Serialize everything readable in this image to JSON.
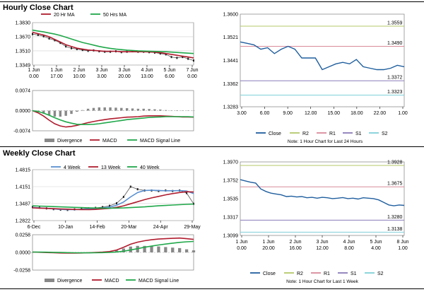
{
  "sections": {
    "hourly_title": "Hourly Close Chart",
    "weekly_title": "Weekly Close Chart"
  },
  "colors": {
    "ma_short": "#b01c2e",
    "ma_long": "#20a84a",
    "close_line": "#1f5e9e",
    "r2": "#b5c86a",
    "r1": "#d88a9a",
    "s1": "#8a7bb8",
    "s2": "#7fd0d8",
    "macd": "#b01c2e",
    "signal": "#20a84a",
    "ma_4w": "#5a8fd0",
    "divergence": "#888888"
  },
  "chart_data": [
    {
      "id": "hourly-price",
      "type": "line",
      "ylim": [
        1.3349,
        1.383
      ],
      "yticks": [
        "1.3830",
        "1.3670",
        "1.3510",
        "1.3349"
      ],
      "xticks": [
        "1 Jun\n0.00",
        "1 Jun\n17.00",
        "2 Jun\n10.00",
        "3 Jun\n3.00",
        "3 Jun\n20.00",
        "4 Jun\n13.00",
        "5 Jun\n6.00",
        "7 Jun\n0.00"
      ],
      "legend": [
        "20 Hr MA",
        "50 Hrs MA"
      ],
      "series": [
        {
          "name": "Close",
          "values": [
            1.37,
            1.369,
            1.3675,
            1.365,
            1.363,
            1.36,
            1.356,
            1.354,
            1.353,
            1.352,
            1.351,
            1.3515,
            1.3505,
            1.35,
            1.35,
            1.3505,
            1.3495,
            1.35,
            1.3505,
            1.35,
            1.35,
            1.3495,
            1.349,
            1.348,
            1.347,
            1.344,
            1.343,
            1.344,
            1.342,
            1.34
          ]
        },
        {
          "name": "20 Hr MA",
          "values": [
            1.372,
            1.3705,
            1.369,
            1.367,
            1.364,
            1.361,
            1.358,
            1.356,
            1.354,
            1.353,
            1.352,
            1.3515,
            1.351,
            1.3505,
            1.3505,
            1.3505,
            1.35,
            1.35,
            1.35,
            1.35,
            1.35,
            1.3498,
            1.3495,
            1.349,
            1.348,
            1.347,
            1.346,
            1.345,
            1.344,
            1.343
          ]
        },
        {
          "name": "50 Hrs MA",
          "values": [
            1.3745,
            1.3735,
            1.3725,
            1.3712,
            1.37,
            1.3685,
            1.3665,
            1.3645,
            1.3625,
            1.3605,
            1.359,
            1.3575,
            1.356,
            1.3548,
            1.3538,
            1.353,
            1.3524,
            1.3518,
            1.3514,
            1.351,
            1.3508,
            1.3506,
            1.3504,
            1.3502,
            1.35,
            1.3496,
            1.3492,
            1.3488,
            1.3484,
            1.348
          ]
        }
      ]
    },
    {
      "id": "hourly-macd",
      "type": "line",
      "ylim": [
        -0.0074,
        0.0074
      ],
      "yticks": [
        "0.0074",
        "0.0000",
        "-0.0074"
      ],
      "legend": [
        "Divergence",
        "MACD",
        "MACD Signal Line"
      ],
      "series": [
        {
          "name": "MACD",
          "values": [
            0.0,
            -0.0008,
            -0.002,
            -0.0035,
            -0.0048,
            -0.0056,
            -0.006,
            -0.0058,
            -0.0054,
            -0.0049,
            -0.0044,
            -0.004,
            -0.0036,
            -0.0033,
            -0.003,
            -0.0028,
            -0.0026,
            -0.0024,
            -0.0023,
            -0.0022,
            -0.002,
            -0.0019,
            -0.0019,
            -0.0019,
            -0.002,
            -0.0021,
            -0.0022,
            -0.0023,
            -0.0023,
            -0.0024
          ]
        },
        {
          "name": "MACD Signal Line",
          "values": [
            0.0,
            -0.0003,
            -0.0009,
            -0.0017,
            -0.0026,
            -0.0034,
            -0.0041,
            -0.0046,
            -0.005,
            -0.0051,
            -0.0051,
            -0.005,
            -0.0048,
            -0.0045,
            -0.0042,
            -0.0039,
            -0.0036,
            -0.0033,
            -0.0031,
            -0.0029,
            -0.0027,
            -0.0025,
            -0.0024,
            -0.0023,
            -0.0022,
            -0.0022,
            -0.0022,
            -0.0022,
            -0.0022,
            -0.0023
          ]
        },
        {
          "name": "Divergence",
          "values": [
            0.0,
            -0.0005,
            -0.0011,
            -0.0018,
            -0.0022,
            -0.0022,
            -0.0019,
            -0.0012,
            -0.0004,
            0.0002,
            0.0007,
            0.001,
            0.0012,
            0.0012,
            0.0012,
            0.0011,
            0.001,
            0.0009,
            0.0008,
            0.0007,
            0.0007,
            0.0006,
            0.0005,
            0.0004,
            0.0002,
            0.0001,
            0.0,
            -0.0001,
            -0.0001,
            -0.0001
          ]
        }
      ]
    },
    {
      "id": "hourly-pivot",
      "type": "line",
      "ylim": [
        1.3283,
        1.36
      ],
      "yticks": [
        "1.3600",
        "1.3521",
        "1.3441",
        "1.3362",
        "1.3283"
      ],
      "xticks": [
        "3.00",
        "6.00",
        "9.00",
        "12.00",
        "15.00",
        "18.00",
        "22.00",
        "1.00"
      ],
      "x": [
        0,
        1,
        2,
        3,
        4,
        5,
        6,
        7,
        8,
        9,
        10,
        11,
        12,
        13,
        14,
        15,
        16,
        17,
        18,
        19,
        20,
        21,
        22,
        23,
        24
      ],
      "series": [
        {
          "name": "Close",
          "values": [
            1.3505,
            1.35,
            1.3495,
            1.348,
            1.3485,
            1.3465,
            1.348,
            1.349,
            1.348,
            1.345,
            1.345,
            1.345,
            1.341,
            1.342,
            1.343,
            1.3435,
            1.343,
            1.3445,
            1.342,
            1.3415,
            1.341,
            1.341,
            1.3415,
            1.3425,
            1.342
          ]
        }
      ],
      "levels": [
        {
          "name": "R2",
          "value": 1.3559,
          "label": "1.3559"
        },
        {
          "name": "R1",
          "value": 1.349,
          "label": "1.3490"
        },
        {
          "name": "S1",
          "value": 1.3372,
          "label": "1.3372"
        },
        {
          "name": "S2",
          "value": 1.3323,
          "label": "1.3323"
        }
      ],
      "legend": [
        "Close",
        "R2",
        "R1",
        "S1",
        "S2"
      ],
      "note": "Note: 1 Hour Chart for Last 24 Hours"
    },
    {
      "id": "weekly-price",
      "type": "line",
      "ylim": [
        1.2822,
        1.4815
      ],
      "yticks": [
        "1.4815",
        "1.4151",
        "1.3487",
        "1.2822"
      ],
      "xticks": [
        "6-Dec",
        "10-Jan",
        "14-Feb",
        "20-Mar",
        "24-Apr",
        "29-May"
      ],
      "legend": [
        "4 Week",
        "13 Week",
        "40 Week"
      ],
      "series": [
        {
          "name": "Close",
          "values": [
            1.335,
            1.333,
            1.33,
            1.327,
            1.325,
            1.324,
            1.326,
            1.328,
            1.33,
            1.332,
            1.335,
            1.34,
            1.35,
            1.375,
            1.415,
            1.405,
            1.4,
            1.4,
            1.398,
            1.4,
            1.398,
            1.4,
            1.39,
            1.348
          ]
        },
        {
          "name": "4 Week",
          "values": [
            1.333,
            1.332,
            1.33,
            1.328,
            1.326,
            1.325,
            1.325,
            1.326,
            1.328,
            1.33,
            1.332,
            1.335,
            1.342,
            1.355,
            1.375,
            1.392,
            1.4,
            1.401,
            1.4,
            1.399,
            1.399,
            1.3995,
            1.398,
            1.388
          ]
        },
        {
          "name": "13 Week",
          "values": [
            1.332,
            1.331,
            1.33,
            1.329,
            1.328,
            1.327,
            1.326,
            1.325,
            1.325,
            1.326,
            1.328,
            1.33,
            1.334,
            1.34,
            1.348,
            1.356,
            1.364,
            1.371,
            1.377,
            1.383,
            1.388,
            1.392,
            1.395,
            1.394
          ]
        },
        {
          "name": "40 Week",
          "values": [
            1.34,
            1.339,
            1.338,
            1.337,
            1.336,
            1.335,
            1.334,
            1.333,
            1.332,
            1.3315,
            1.331,
            1.331,
            1.3312,
            1.3318,
            1.333,
            1.3345,
            1.336,
            1.338,
            1.34,
            1.3415,
            1.343,
            1.3445,
            1.346,
            1.347
          ]
        }
      ]
    },
    {
      "id": "weekly-macd",
      "type": "line",
      "ylim": [
        -0.0258,
        0.0258
      ],
      "yticks": [
        "0.0258",
        "0.0000",
        "-0.0258"
      ],
      "legend": [
        "Divergence",
        "MACD",
        "MACD Signal Line"
      ],
      "series": [
        {
          "name": "MACD",
          "values": [
            0.0005,
            0.0002,
            -0.0002,
            -0.0005,
            -0.0008,
            -0.001,
            -0.001,
            -0.0008,
            -0.0005,
            -0.0001,
            0.0004,
            0.0012,
            0.0035,
            0.0075,
            0.012,
            0.015,
            0.017,
            0.0185,
            0.0195,
            0.02,
            0.0205,
            0.021,
            0.02,
            0.019
          ]
        },
        {
          "name": "MACD Signal Line",
          "values": [
            0.0005,
            0.0004,
            0.0003,
            0.0001,
            -0.0001,
            -0.0003,
            -0.0005,
            -0.0006,
            -0.0006,
            -0.0005,
            -0.0003,
            0.0,
            0.0006,
            0.0018,
            0.0035,
            0.0055,
            0.0075,
            0.0092,
            0.0108,
            0.0122,
            0.0135,
            0.0147,
            0.0155,
            0.016
          ]
        },
        {
          "name": "Divergence",
          "values": [
            0.0,
            -0.0002,
            -0.0005,
            -0.0006,
            -0.0007,
            -0.0007,
            -0.0005,
            -0.0002,
            0.0001,
            0.0004,
            0.0007,
            0.0012,
            0.0029,
            0.0057,
            0.0085,
            0.0095,
            0.0095,
            0.0093,
            0.0087,
            0.0078,
            0.007,
            0.0063,
            0.0045,
            0.003
          ]
        }
      ]
    },
    {
      "id": "weekly-pivot",
      "type": "line",
      "ylim": [
        1.3099,
        1.397
      ],
      "yticks": [
        "1.3970",
        "1.3752",
        "1.3535",
        "1.3317",
        "1.3099"
      ],
      "xticks": [
        "1 Jun\n0.00",
        "1 Jun\n20.00",
        "2 Jun\n16.00",
        "3 Jun\n12.00",
        "4 Jun\n8.00",
        "5 Jun\n4.00",
        "8 Jun\n1.00"
      ],
      "series": [
        {
          "name": "Close",
          "values": [
            1.376,
            1.3745,
            1.373,
            1.372,
            1.365,
            1.362,
            1.36,
            1.359,
            1.358,
            1.356,
            1.3565,
            1.3555,
            1.356,
            1.3545,
            1.355,
            1.354,
            1.355,
            1.3545,
            1.3535,
            1.354,
            1.3548,
            1.3535,
            1.354,
            1.353,
            1.3545,
            1.354,
            1.3535,
            1.352,
            1.349,
            1.346,
            1.345,
            1.346,
            1.3455
          ]
        }
      ],
      "levels": [
        {
          "name": "R2",
          "value": 1.3928,
          "label": "1.3928"
        },
        {
          "name": "R1",
          "value": 1.3675,
          "label": "1.3675"
        },
        {
          "name": "S1",
          "value": 1.328,
          "label": "1.3280"
        },
        {
          "name": "S2",
          "value": 1.3138,
          "label": "1.3138"
        }
      ],
      "legend": [
        "Close",
        "R2",
        "R1",
        "S1",
        "S2"
      ],
      "note": "Note: 1 Hour Chart for  Last 1 Week"
    }
  ]
}
